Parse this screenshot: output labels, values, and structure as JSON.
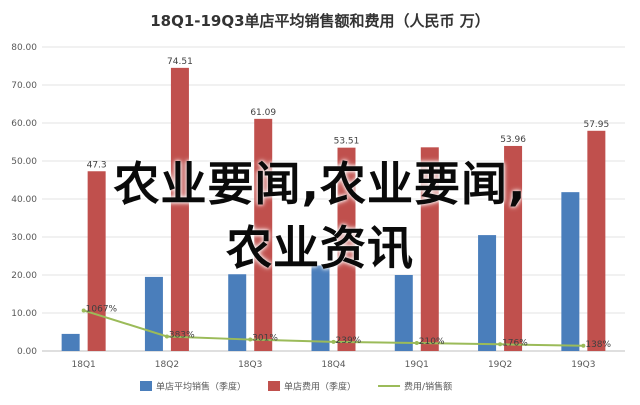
{
  "chart_data": {
    "type": "bar",
    "title": "18Q1-19Q3单店平均销售额和费用（人民币 万）",
    "categories": [
      "18Q1",
      "18Q2",
      "18Q3",
      "18Q4",
      "19Q1",
      "19Q2",
      "19Q3"
    ],
    "ylim": [
      0,
      80
    ],
    "yticks": [
      "0.00",
      "10.00",
      "20.00",
      "30.00",
      "40.00",
      "50.00",
      "60.00",
      "70.00",
      "80.00"
    ],
    "grid": true,
    "legend_position": "bottom",
    "series": [
      {
        "name": "单店平均销售（季度）",
        "type": "bar",
        "color": "#4a7ebb",
        "values": [
          4.5,
          19.5,
          20.2,
          22.5,
          20.0,
          30.5,
          41.8
        ],
        "labels": []
      },
      {
        "name": "单店费用（季度）",
        "type": "bar",
        "color": "#c0504d",
        "values": [
          47.3,
          74.51,
          61.09,
          53.51,
          53.6,
          53.96,
          57.95
        ],
        "labels": [
          "47.3",
          "74.51",
          "61.09",
          "53.51",
          "",
          "53.96",
          "57.95"
        ]
      },
      {
        "name": "费用/销售额",
        "type": "line",
        "color": "#9bbb59",
        "values": [
          10.67,
          3.83,
          3.01,
          2.39,
          2.1,
          1.76,
          1.38
        ],
        "labels": [
          "1067%",
          "383%",
          "301%",
          "239%",
          "210%",
          "176%",
          "138%"
        ]
      }
    ]
  },
  "overlay": {
    "line1": "农业要闻,农业要闻,",
    "line2": "农业资讯"
  }
}
